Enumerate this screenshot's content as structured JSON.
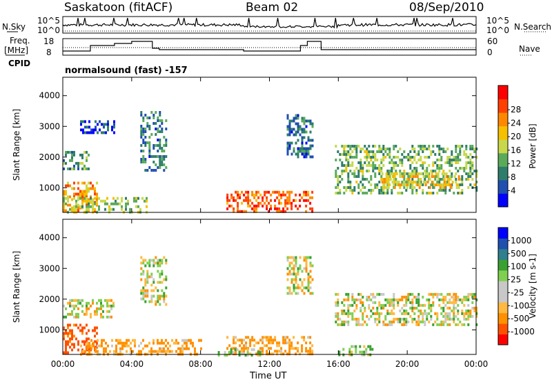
{
  "header": {
    "title": "Saskatoon (fitACF)",
    "beam": "Beam 02",
    "date": "08/Sep/2010"
  },
  "labels": {
    "nsky": "N.Sky",
    "nsky_hi": "10^5",
    "nsky_lo": "10^0",
    "nsearch": "N.Search",
    "nsearch_hi": "10^5",
    "nsearch_lo": "10^0",
    "freq_line1": "Freq.",
    "freq_line2": "[MHz]",
    "freq_hi": "18",
    "freq_lo": "8",
    "nave": "Nave",
    "nave_hi": "60",
    "nave_lo": "0",
    "cpid": "CPID",
    "cpid_value": "normalsound (fast) -157"
  },
  "colors": {
    "power_scale": [
      "#0000ff",
      "#1f4fb0",
      "#2e7d6b",
      "#5aaa5a",
      "#c8d84a",
      "#f5c000",
      "#ff8800",
      "#ff4000",
      "#ff0000"
    ],
    "velocity_scale": [
      "#ff0000",
      "#ff5000",
      "#ff9000",
      "#ffb840",
      "#c8c8c8",
      "#c8c8c8",
      "#7fd04f",
      "#3aa030",
      "#2f7f8f",
      "#1f50b0",
      "#0000ff"
    ]
  },
  "chart_data": [
    {
      "type": "heatmap",
      "name": "power",
      "xlabel": "",
      "ylabel": "Slant Range [km]",
      "ylim": [
        200,
        4600
      ],
      "yticks": [
        "1000",
        "2000",
        "3000",
        "4000"
      ],
      "colorbar_label": "Power [dB]",
      "colorbar_ticks": [
        "4",
        "8",
        "12",
        "16",
        "20",
        "24",
        "28"
      ],
      "blobs": [
        {
          "t0": 0.0,
          "t1": 2.0,
          "r0": 300,
          "r1": 1200,
          "v": 22
        },
        {
          "t0": 0.0,
          "t1": 5.0,
          "r0": 200,
          "r1": 700,
          "v": 16
        },
        {
          "t0": 0.0,
          "t1": 1.5,
          "r0": 1600,
          "r1": 2200,
          "v": 12
        },
        {
          "t0": 1.0,
          "t1": 3.0,
          "r0": 2800,
          "r1": 3200,
          "v": 6
        },
        {
          "t0": 4.5,
          "t1": 6.0,
          "r0": 1600,
          "r1": 3500,
          "v": 10
        },
        {
          "t0": 9.5,
          "t1": 14.5,
          "r0": 250,
          "r1": 900,
          "v": 26
        },
        {
          "t0": 13.0,
          "t1": 14.5,
          "r0": 2000,
          "r1": 3400,
          "v": 9
        },
        {
          "t0": 15.8,
          "t1": 24.0,
          "r0": 800,
          "r1": 2400,
          "v": 14
        },
        {
          "t0": 18.5,
          "t1": 23.0,
          "r0": 1000,
          "r1": 1500,
          "v": 20
        }
      ]
    },
    {
      "type": "heatmap",
      "name": "velocity",
      "xlabel": "Time UT",
      "ylabel": "Slant Range [km]",
      "ylim": [
        200,
        4600
      ],
      "yticks": [
        "1000",
        "2000",
        "3000",
        "4000"
      ],
      "xticks": [
        "00:00",
        "04:00",
        "08:00",
        "12:00",
        "16:00",
        "20:00",
        "00:00"
      ],
      "colorbar_label": "Velocity [m s-1]",
      "colorbar_ticks": [
        "1000",
        "500",
        "100",
        "25",
        "-25",
        "-100",
        "-500",
        "-1000"
      ],
      "blobs": [
        {
          "t0": 0.0,
          "t1": 2.0,
          "r0": 300,
          "r1": 1200,
          "v": -400
        },
        {
          "t0": 1.0,
          "t1": 8.0,
          "r0": 200,
          "r1": 700,
          "v": -150
        },
        {
          "t0": 0.0,
          "t1": 3.0,
          "r0": 1400,
          "r1": 2000,
          "v": 0
        },
        {
          "t0": 4.5,
          "t1": 6.0,
          "r0": 1800,
          "r1": 3400,
          "v": 0
        },
        {
          "t0": 9.5,
          "t1": 14.5,
          "r0": 250,
          "r1": 800,
          "v": -150
        },
        {
          "t0": 9.0,
          "t1": 11.5,
          "r0": 200,
          "r1": 400,
          "v": 80
        },
        {
          "t0": 13.0,
          "t1": 14.5,
          "r0": 2200,
          "r1": 3400,
          "v": 0
        },
        {
          "t0": 15.8,
          "t1": 24.0,
          "r0": 1200,
          "r1": 2200,
          "v": 0
        },
        {
          "t0": 16.0,
          "t1": 18.0,
          "r0": 200,
          "r1": 500,
          "v": 80
        }
      ]
    }
  ],
  "xlabel_bottom": "Time UT",
  "time_ticks": [
    "00:00",
    "04:00",
    "08:00",
    "12:00",
    "16:00",
    "20:00",
    "00:00"
  ]
}
